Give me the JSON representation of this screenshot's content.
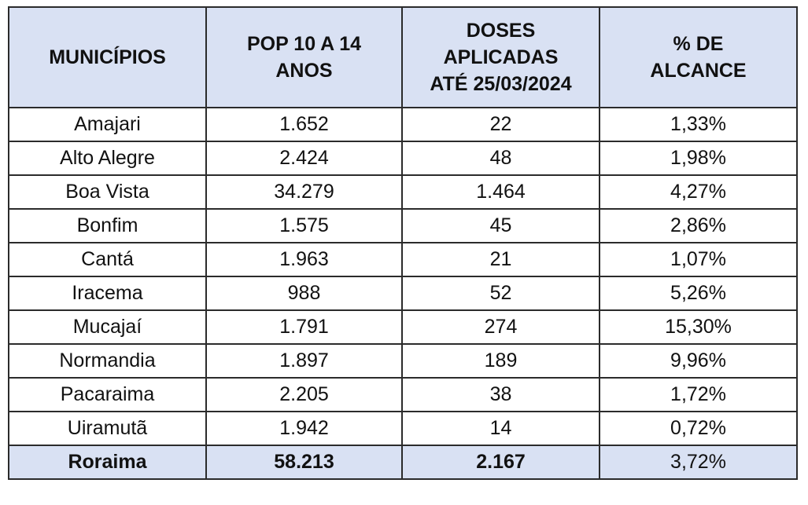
{
  "table": {
    "headers": [
      [
        "MUNICÍPIOS"
      ],
      [
        "POP 10 A 14",
        "ANOS"
      ],
      [
        "DOSES",
        "APLICADAS",
        "ATÉ 25/03/2024"
      ],
      [
        "% DE",
        "ALCANCE"
      ]
    ],
    "rows": [
      {
        "municipio": "Amajari",
        "pop": "1.652",
        "doses": "22",
        "alcance": "1,33%"
      },
      {
        "municipio": "Alto Alegre",
        "pop": "2.424",
        "doses": "48",
        "alcance": "1,98%"
      },
      {
        "municipio": "Boa Vista",
        "pop": "34.279",
        "doses": "1.464",
        "alcance": "4,27%"
      },
      {
        "municipio": "Bonfim",
        "pop": "1.575",
        "doses": "45",
        "alcance": "2,86%"
      },
      {
        "municipio": "Cantá",
        "pop": "1.963",
        "doses": "21",
        "alcance": "1,07%"
      },
      {
        "municipio": "Iracema",
        "pop": "988",
        "doses": "52",
        "alcance": "5,26%"
      },
      {
        "municipio": "Mucajaí",
        "pop": "1.791",
        "doses": "274",
        "alcance": "15,30%"
      },
      {
        "municipio": "Normandia",
        "pop": "1.897",
        "doses": "189",
        "alcance": "9,96%"
      },
      {
        "municipio": "Pacaraima",
        "pop": "2.205",
        "doses": "38",
        "alcance": "1,72%"
      },
      {
        "municipio": "Uiramutã",
        "pop": "1.942",
        "doses": "14",
        "alcance": "0,72%"
      }
    ],
    "total": {
      "municipio": "Roraima",
      "pop": "58.213",
      "doses": "2.167",
      "alcance": "3,72%"
    }
  },
  "colors": {
    "header_bg": "#d9e1f3",
    "border": "#2b2b2b",
    "text": "#111111"
  }
}
